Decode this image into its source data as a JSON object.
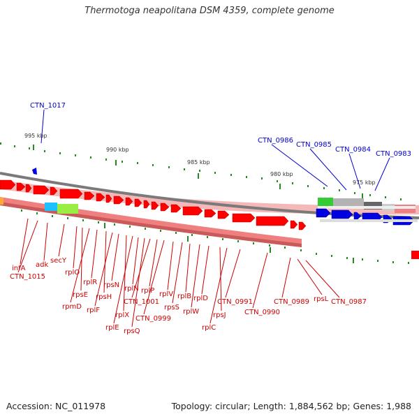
{
  "title": "Thermotoga neapolitana DSM 4359, complete genome",
  "footer": {
    "accession": "Accession: NC_011978",
    "summary": "Topology: circular; Length: 1,884,562 bp; Genes: 1,988"
  },
  "colors": {
    "forward_gene": "#ff0000",
    "forward_gene_upper": "#0000e0",
    "label_red": "#cc0000",
    "label_blue": "#0000cc",
    "backbone": "#808080",
    "tick": "#228b22"
  },
  "scale_labels": [
    "995 kbp",
    "990 kbp",
    "985 kbp",
    "980 kbp",
    "975 kbp"
  ],
  "blue_labels": [
    "CTN_1017",
    "CTN_0986",
    "CTN_0985",
    "CTN_0984",
    "CTN_0983"
  ],
  "red_labels": [
    "infA",
    "CTN_1015",
    "adk",
    "secY",
    "rplO",
    "rpsE",
    "rpmD",
    "rplR",
    "rpsH",
    "rplF",
    "rpsN",
    "rplX",
    "rplE",
    "rplN",
    "rpsQ",
    "CTN_1001",
    "rplP",
    "CTN_0999",
    "rplV",
    "rpsS",
    "rplB",
    "rplW",
    "rplD",
    "rpsJ",
    "rplC",
    "CTN_0991",
    "CTN_0990",
    "CTN_0989",
    "rpsL",
    "CTN_0987"
  ]
}
